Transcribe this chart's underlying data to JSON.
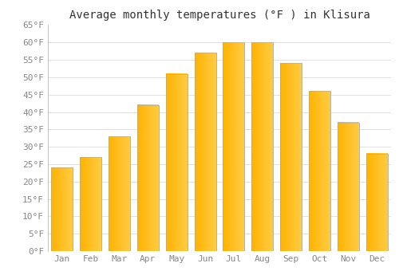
{
  "title": "Average monthly temperatures (°F ) in Klisura",
  "months": [
    "Jan",
    "Feb",
    "Mar",
    "Apr",
    "May",
    "Jun",
    "Jul",
    "Aug",
    "Sep",
    "Oct",
    "Nov",
    "Dec"
  ],
  "values": [
    24,
    27,
    33,
    42,
    51,
    57,
    60,
    60,
    54,
    46,
    37,
    28
  ],
  "bar_color_left": "#FFB300",
  "bar_color_right": "#FFCC44",
  "bar_edge_color": "#AAAAAA",
  "ylim": [
    0,
    65
  ],
  "yticks": [
    0,
    5,
    10,
    15,
    20,
    25,
    30,
    35,
    40,
    45,
    50,
    55,
    60,
    65
  ],
  "ylabel_suffix": "°F",
  "background_color": "#FFFFFF",
  "grid_color": "#DDDDDD",
  "title_fontsize": 10,
  "tick_fontsize": 8,
  "font_family": "monospace"
}
